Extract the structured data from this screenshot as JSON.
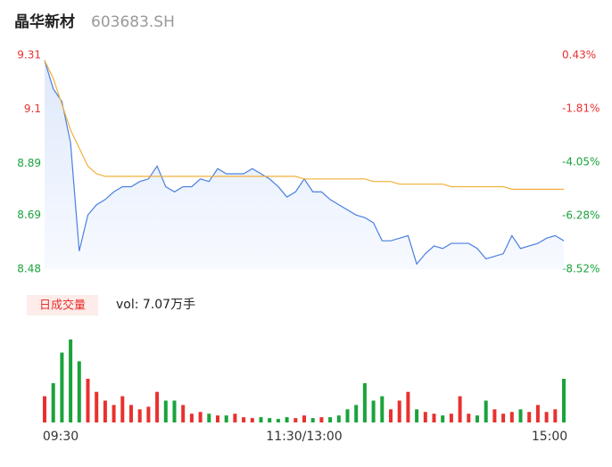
{
  "chart_data": {
    "type": "line",
    "title": "晶华新材",
    "code": "603683.SH",
    "categories": [
      "09:30",
      null,
      null,
      null,
      null,
      null,
      null,
      null,
      null,
      null,
      null,
      null,
      null,
      null,
      null,
      null,
      null,
      null,
      null,
      null,
      null,
      null,
      null,
      null,
      null,
      null,
      null,
      null,
      null,
      null,
      "11:30/13:00",
      null,
      null,
      null,
      null,
      null,
      null,
      null,
      null,
      null,
      null,
      null,
      null,
      null,
      null,
      null,
      null,
      null,
      null,
      null,
      null,
      null,
      null,
      null,
      null,
      null,
      null,
      null,
      null,
      null,
      "15:00"
    ],
    "series": [
      {
        "color": "#4a7fe0",
        "values": [
          9.29,
          9.18,
          9.13,
          8.97,
          8.55,
          8.69,
          8.73,
          8.75,
          8.78,
          8.8,
          8.8,
          8.82,
          8.83,
          8.88,
          8.8,
          8.78,
          8.8,
          8.8,
          8.83,
          8.82,
          8.87,
          8.85,
          8.85,
          8.85,
          8.87,
          8.85,
          8.83,
          8.8,
          8.76,
          8.78,
          8.83,
          8.78,
          8.78,
          8.75,
          8.73,
          8.71,
          8.69,
          8.68,
          8.66,
          8.59,
          8.59,
          8.6,
          8.61,
          8.5,
          8.54,
          8.57,
          8.56,
          8.58,
          8.58,
          8.58,
          8.56,
          8.52,
          8.53,
          8.54,
          8.61,
          8.56,
          8.57,
          8.58,
          8.6,
          8.61,
          8.59
        ]
      },
      {
        "color": "#f2b03a",
        "values": [
          9.29,
          9.22,
          9.12,
          9.02,
          8.95,
          8.88,
          8.85,
          8.84,
          8.84,
          8.84,
          8.84,
          8.84,
          8.84,
          8.84,
          8.84,
          8.84,
          8.84,
          8.84,
          8.84,
          8.84,
          8.84,
          8.84,
          8.84,
          8.84,
          8.84,
          8.84,
          8.84,
          8.84,
          8.84,
          8.84,
          8.83,
          8.83,
          8.83,
          8.83,
          8.83,
          8.83,
          8.83,
          8.83,
          8.82,
          8.82,
          8.82,
          8.81,
          8.81,
          8.81,
          8.81,
          8.81,
          8.81,
          8.8,
          8.8,
          8.8,
          8.8,
          8.8,
          8.8,
          8.8,
          8.79,
          8.79,
          8.79,
          8.79,
          8.79,
          8.79,
          8.79
        ]
      }
    ],
    "ylim": [
      8.48,
      9.31
    ],
    "yticks": [
      9.31,
      9.1,
      8.89,
      8.69,
      8.48
    ],
    "y2lim": [
      -8.52,
      0.43
    ],
    "y2ticks": [
      {
        "value": 0.43,
        "label": "0.43%"
      },
      {
        "value": -1.81,
        "label": "-1.81%"
      },
      {
        "value": -4.05,
        "label": "-4.05%"
      },
      {
        "value": -6.28,
        "label": "-6.28%"
      },
      {
        "value": -8.52,
        "label": "-8.52%"
      }
    ],
    "up_color": "#e8312f",
    "down_color": "#1aa33c",
    "flat_color": "#999999",
    "volume": {
      "label": "日成交量",
      "summary": "vol: 7.07万手",
      "ylim": [
        0,
        100
      ],
      "values": [
        30,
        45,
        80,
        95,
        70,
        50,
        35,
        25,
        20,
        30,
        20,
        15,
        18,
        35,
        25,
        25,
        20,
        10,
        12,
        10,
        8,
        8,
        10,
        6,
        5,
        6,
        5,
        4,
        6,
        5,
        8,
        5,
        6,
        6,
        8,
        15,
        20,
        45,
        25,
        30,
        15,
        25,
        35,
        15,
        12,
        10,
        8,
        10,
        30,
        10,
        8,
        25,
        15,
        10,
        12,
        15,
        12,
        20,
        12,
        15,
        50
      ]
    }
  }
}
